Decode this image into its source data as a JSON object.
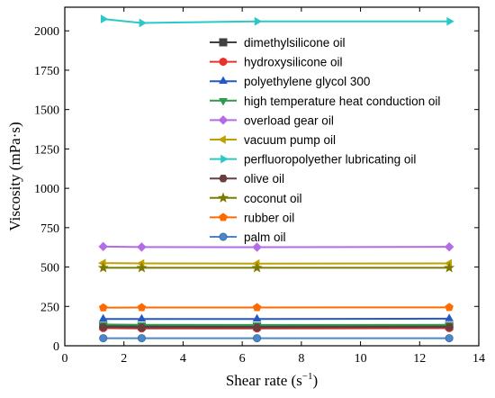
{
  "chart_data": {
    "type": "line",
    "xlabel": "Shear rate (s",
    "xlabel_sup": "−1",
    "xlabel_close": ")",
    "ylabel": "Viscosity (mPa·s)",
    "xlim": [
      0,
      14
    ],
    "ylim": [
      0,
      2150
    ],
    "xticks": [
      0,
      2,
      4,
      6,
      8,
      10,
      12,
      14
    ],
    "yticks": [
      0,
      250,
      500,
      750,
      1000,
      1250,
      1500,
      1750,
      2000
    ],
    "legend_placement": "top-right",
    "x": [
      1.3,
      2.6,
      6.5,
      13.0
    ],
    "series": [
      {
        "name": "dimethylsilicone oil",
        "color": "#404040",
        "marker": "square",
        "values": [
          125,
          123,
          122,
          125
        ]
      },
      {
        "name": "hydroxysilicone oil",
        "color": "#e8312f",
        "marker": "circle",
        "values": [
          112,
          110,
          110,
          112
        ]
      },
      {
        "name": "polyethylene glycol 300",
        "color": "#2457c8",
        "marker": "triangle-up",
        "values": [
          170,
          170,
          170,
          172
        ]
      },
      {
        "name": "high temperature heat conduction oil",
        "color": "#2e9a4c",
        "marker": "triangle-down",
        "values": [
          135,
          133,
          132,
          133
        ]
      },
      {
        "name": "overload gear oil",
        "color": "#b36ce6",
        "marker": "diamond",
        "values": [
          630,
          627,
          626,
          628
        ]
      },
      {
        "name": "vacuum pump oil",
        "color": "#bfa000",
        "marker": "triangle-left",
        "values": [
          525,
          523,
          522,
          523
        ]
      },
      {
        "name": "perfluoropolyether lubricating oil",
        "color": "#2cc8c8",
        "marker": "triangle-right",
        "values": [
          2075,
          2050,
          2060,
          2060
        ]
      },
      {
        "name": "olive oil",
        "color": "#6b3e3e",
        "marker": "hexagon",
        "values": [
          118,
          116,
          116,
          118
        ]
      },
      {
        "name": "coconut oil",
        "color": "#7a7a00",
        "marker": "star",
        "values": [
          495,
          495,
          495,
          495
        ]
      },
      {
        "name": "rubber oil",
        "color": "#ff6a00",
        "marker": "pentagon",
        "values": [
          242,
          243,
          243,
          244
        ]
      },
      {
        "name": "palm oil",
        "color": "#4a86c8",
        "marker": "sphere",
        "values": [
          48,
          48,
          48,
          48
        ]
      }
    ]
  }
}
